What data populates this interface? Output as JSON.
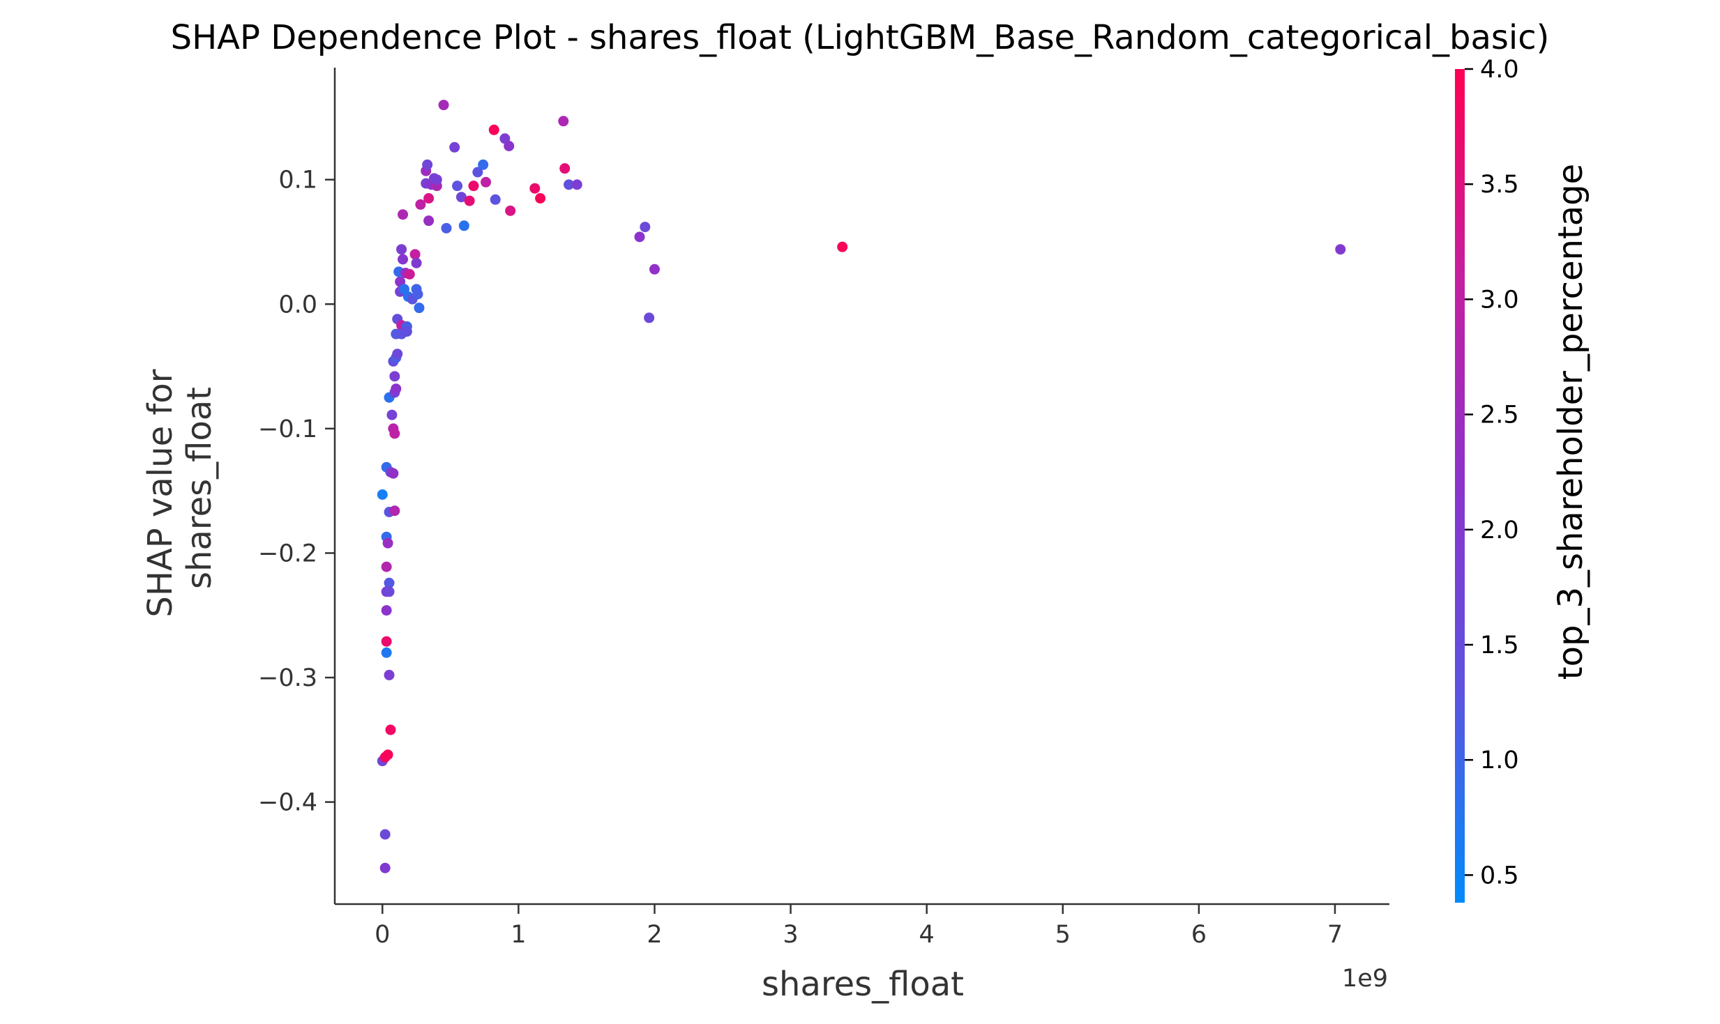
{
  "chart_data": {
    "type": "scatter",
    "title": "SHAP Dependence Plot - shares_float (LightGBM_Base_Random_categorical_basic)",
    "xlabel": "shares_float",
    "ylabel_lines": [
      "SHAP value for",
      "shares_float"
    ],
    "x_offset_label": "1e9",
    "x_scale": 1000000000,
    "xlim": [
      -0.35,
      7.4
    ],
    "ylim": [
      -0.482,
      0.19
    ],
    "x_ticks": [
      0,
      1,
      2,
      3,
      4,
      5,
      6,
      7
    ],
    "x_tick_labels": [
      "0",
      "1",
      "2",
      "3",
      "4",
      "5",
      "6",
      "7"
    ],
    "y_ticks": [
      0.1,
      0.0,
      -0.1,
      -0.2,
      -0.3,
      -0.4
    ],
    "y_tick_labels": [
      "0.1",
      "0.0",
      "−0.1",
      "−0.2",
      "−0.3",
      "−0.4"
    ],
    "grid": false,
    "colorbar": {
      "label": "top_3_shareholder_percentage",
      "range": [
        0.38,
        4.0
      ],
      "ticks": [
        4.0,
        3.5,
        3.0,
        2.5,
        2.0,
        1.5,
        1.0,
        0.5
      ],
      "tick_labels": [
        "4.0",
        "3.5",
        "3.0",
        "2.5",
        "2.0",
        "1.5",
        "1.0",
        "0.5"
      ],
      "colors": [
        "#008bfb",
        "#5b54e0",
        "#8b33cc",
        "#c51fa0",
        "#ff0052"
      ]
    },
    "points": [
      {
        "x": 0.0,
        "y": -0.153,
        "c": 0.6
      },
      {
        "x": 0.0,
        "y": -0.367,
        "c": 1.7
      },
      {
        "x": 0.02,
        "y": -0.364,
        "c": 3.8
      },
      {
        "x": 0.02,
        "y": -0.426,
        "c": 1.6
      },
      {
        "x": 0.02,
        "y": -0.453,
        "c": 2.0
      },
      {
        "x": 0.03,
        "y": -0.131,
        "c": 0.9
      },
      {
        "x": 0.03,
        "y": -0.187,
        "c": 0.9
      },
      {
        "x": 0.03,
        "y": -0.211,
        "c": 2.8
      },
      {
        "x": 0.03,
        "y": -0.231,
        "c": 1.9
      },
      {
        "x": 0.03,
        "y": -0.246,
        "c": 2.2
      },
      {
        "x": 0.03,
        "y": -0.271,
        "c": 3.7
      },
      {
        "x": 0.03,
        "y": -0.28,
        "c": 0.7
      },
      {
        "x": 0.04,
        "y": -0.192,
        "c": 2.4
      },
      {
        "x": 0.04,
        "y": -0.362,
        "c": 3.9
      },
      {
        "x": 0.05,
        "y": -0.075,
        "c": 0.8
      },
      {
        "x": 0.05,
        "y": -0.167,
        "c": 1.3
      },
      {
        "x": 0.05,
        "y": -0.224,
        "c": 1.2
      },
      {
        "x": 0.05,
        "y": -0.231,
        "c": 1.6
      },
      {
        "x": 0.05,
        "y": -0.298,
        "c": 1.9
      },
      {
        "x": 0.06,
        "y": -0.342,
        "c": 3.8
      },
      {
        "x": 0.06,
        "y": -0.135,
        "c": 1.7
      },
      {
        "x": 0.07,
        "y": -0.089,
        "c": 1.8
      },
      {
        "x": 0.08,
        "y": -0.136,
        "c": 2.3
      },
      {
        "x": 0.08,
        "y": -0.1,
        "c": 2.9
      },
      {
        "x": 0.08,
        "y": -0.046,
        "c": 1.4
      },
      {
        "x": 0.09,
        "y": -0.058,
        "c": 1.9
      },
      {
        "x": 0.09,
        "y": -0.071,
        "c": 1.8
      },
      {
        "x": 0.09,
        "y": -0.104,
        "c": 3.0
      },
      {
        "x": 0.09,
        "y": -0.166,
        "c": 2.8
      },
      {
        "x": 0.1,
        "y": -0.068,
        "c": 2.2
      },
      {
        "x": 0.1,
        "y": -0.043,
        "c": 1.1
      },
      {
        "x": 0.1,
        "y": -0.024,
        "c": 1.2
      },
      {
        "x": 0.11,
        "y": -0.04,
        "c": 1.6
      },
      {
        "x": 0.11,
        "y": -0.012,
        "c": 1.5
      },
      {
        "x": 0.12,
        "y": 0.026,
        "c": 0.9
      },
      {
        "x": 0.13,
        "y": 0.01,
        "c": 1.8
      },
      {
        "x": 0.13,
        "y": 0.018,
        "c": 2.2
      },
      {
        "x": 0.14,
        "y": 0.044,
        "c": 1.9
      },
      {
        "x": 0.14,
        "y": -0.017,
        "c": 3.0
      },
      {
        "x": 0.14,
        "y": -0.024,
        "c": 1.3
      },
      {
        "x": 0.15,
        "y": 0.036,
        "c": 2.1
      },
      {
        "x": 0.15,
        "y": 0.072,
        "c": 2.7
      },
      {
        "x": 0.16,
        "y": 0.012,
        "c": 0.8
      },
      {
        "x": 0.17,
        "y": 0.025,
        "c": 2.4
      },
      {
        "x": 0.18,
        "y": -0.018,
        "c": 1.1
      },
      {
        "x": 0.18,
        "y": -0.022,
        "c": 1.4
      },
      {
        "x": 0.19,
        "y": 0.006,
        "c": 0.8
      },
      {
        "x": 0.2,
        "y": 0.024,
        "c": 3.2
      },
      {
        "x": 0.22,
        "y": 0.004,
        "c": 1.3
      },
      {
        "x": 0.24,
        "y": 0.04,
        "c": 3.1
      },
      {
        "x": 0.25,
        "y": 0.012,
        "c": 1.0
      },
      {
        "x": 0.25,
        "y": 0.033,
        "c": 2.0
      },
      {
        "x": 0.26,
        "y": 0.008,
        "c": 1.1
      },
      {
        "x": 0.27,
        "y": -0.003,
        "c": 0.9
      },
      {
        "x": 0.28,
        "y": 0.08,
        "c": 3.0
      },
      {
        "x": 0.32,
        "y": 0.097,
        "c": 1.9
      },
      {
        "x": 0.32,
        "y": 0.107,
        "c": 2.5
      },
      {
        "x": 0.33,
        "y": 0.112,
        "c": 1.7
      },
      {
        "x": 0.34,
        "y": 0.067,
        "c": 2.4
      },
      {
        "x": 0.34,
        "y": 0.085,
        "c": 3.4
      },
      {
        "x": 0.36,
        "y": 0.096,
        "c": 2.2
      },
      {
        "x": 0.38,
        "y": 0.101,
        "c": 1.9
      },
      {
        "x": 0.4,
        "y": 0.095,
        "c": 2.7
      },
      {
        "x": 0.4,
        "y": 0.1,
        "c": 1.8
      },
      {
        "x": 0.45,
        "y": 0.16,
        "c": 2.6
      },
      {
        "x": 0.47,
        "y": 0.061,
        "c": 1.1
      },
      {
        "x": 0.53,
        "y": 0.126,
        "c": 1.8
      },
      {
        "x": 0.55,
        "y": 0.095,
        "c": 1.3
      },
      {
        "x": 0.58,
        "y": 0.086,
        "c": 1.7
      },
      {
        "x": 0.6,
        "y": 0.063,
        "c": 0.8
      },
      {
        "x": 0.64,
        "y": 0.083,
        "c": 3.6
      },
      {
        "x": 0.67,
        "y": 0.095,
        "c": 3.7
      },
      {
        "x": 0.7,
        "y": 0.106,
        "c": 1.3
      },
      {
        "x": 0.74,
        "y": 0.112,
        "c": 0.9
      },
      {
        "x": 0.76,
        "y": 0.098,
        "c": 3.0
      },
      {
        "x": 0.82,
        "y": 0.14,
        "c": 3.9
      },
      {
        "x": 0.83,
        "y": 0.084,
        "c": 1.3
      },
      {
        "x": 0.9,
        "y": 0.133,
        "c": 1.9
      },
      {
        "x": 0.93,
        "y": 0.127,
        "c": 2.2
      },
      {
        "x": 0.94,
        "y": 0.075,
        "c": 3.4
      },
      {
        "x": 1.12,
        "y": 0.093,
        "c": 3.7
      },
      {
        "x": 1.16,
        "y": 0.085,
        "c": 3.9
      },
      {
        "x": 1.33,
        "y": 0.147,
        "c": 2.7
      },
      {
        "x": 1.34,
        "y": 0.109,
        "c": 3.6
      },
      {
        "x": 1.37,
        "y": 0.096,
        "c": 1.4
      },
      {
        "x": 1.43,
        "y": 0.096,
        "c": 1.9
      },
      {
        "x": 1.89,
        "y": 0.054,
        "c": 2.2
      },
      {
        "x": 1.93,
        "y": 0.062,
        "c": 1.6
      },
      {
        "x": 1.96,
        "y": -0.011,
        "c": 1.6
      },
      {
        "x": 2.0,
        "y": 0.028,
        "c": 2.3
      },
      {
        "x": 3.38,
        "y": 0.046,
        "c": 3.9
      },
      {
        "x": 7.04,
        "y": 0.044,
        "c": 2.0
      }
    ]
  }
}
